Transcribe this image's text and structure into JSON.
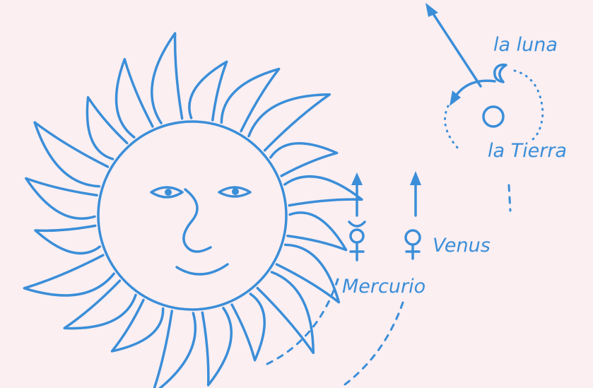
{
  "nodes": [
    {
      "label": "la luna"
    },
    {
      "label": "la Tierra"
    },
    {
      "label": "Venus"
    },
    {
      "label": "Mercurio"
    }
  ]
}
